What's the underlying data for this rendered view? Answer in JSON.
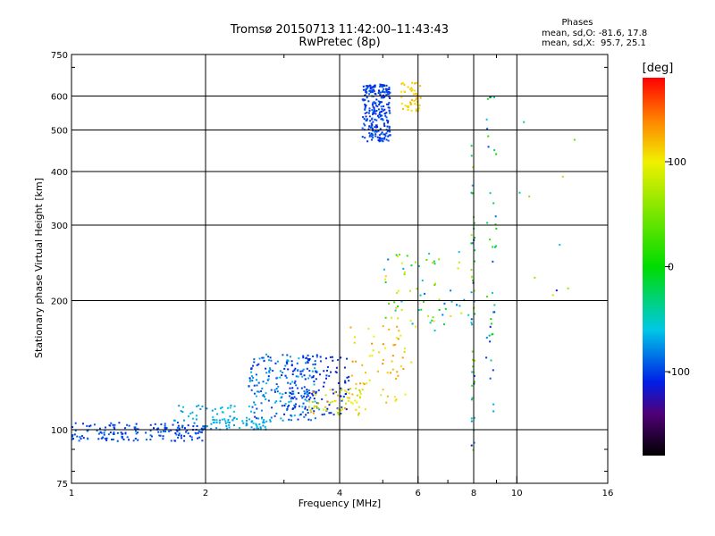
{
  "header": {
    "title_line1": "Tromsø 20150713 11:42:00–11:43:43",
    "title_line2": "RwPretec (8p)",
    "stats_title": "Phases",
    "stats_line1": "mean, sd,O: -81.6, 17.8",
    "stats_line2": "mean, sd,X:  95.7, 25.1"
  },
  "colorbar": {
    "label": "[deg]",
    "ticks": [
      100,
      0,
      -100
    ],
    "tick_labels": [
      "100",
      "0",
      "-100"
    ],
    "range": [
      -180,
      180
    ]
  },
  "chart_data": {
    "type": "scatter",
    "title": "Tromsø 20150713 11:42:00–11:43:43",
    "subtitle": "RwPretec (8p)",
    "xlabel": "Frequency [MHz]",
    "ylabel": "Stationary phase Virtual Height [km]",
    "xscale": "log",
    "yscale": "log",
    "xlim": [
      1,
      16
    ],
    "ylim": [
      75,
      750
    ],
    "x_ticks": [
      1,
      2,
      4,
      6,
      8,
      10,
      16
    ],
    "x_tick_labels": [
      "1",
      "2",
      "4",
      "6",
      "8",
      "10",
      "16"
    ],
    "y_ticks": [
      75,
      100,
      200,
      300,
      400,
      500,
      600,
      750
    ],
    "y_tick_labels": [
      "75",
      "100",
      "200",
      "300",
      "400",
      "500",
      "600",
      "750"
    ],
    "grid": true,
    "color_variable": "phase [deg]",
    "clusters": [
      {
        "x_range": [
          1.0,
          2.0
        ],
        "height_range": [
          94,
          104
        ],
        "phase_range": [
          -110,
          -85
        ],
        "count": 170
      },
      {
        "x_range": [
          2.0,
          2.8
        ],
        "height_range": [
          100,
          106
        ],
        "phase_range": [
          -80,
          -60
        ],
        "count": 60
      },
      {
        "x_range": [
          1.7,
          2.6
        ],
        "height_range": [
          105,
          115
        ],
        "phase_range": [
          -75,
          -55
        ],
        "count": 40
      },
      {
        "x_range": [
          2.5,
          3.6
        ],
        "height_range": [
          105,
          150
        ],
        "phase_range": [
          -110,
          -60
        ],
        "count": 200
      },
      {
        "x_range": [
          3.0,
          4.2
        ],
        "height_range": [
          108,
          150
        ],
        "phase_range": [
          -115,
          -95
        ],
        "count": 120
      },
      {
        "x_range": [
          3.4,
          4.6
        ],
        "height_range": [
          108,
          125
        ],
        "phase_range": [
          60,
          140
        ],
        "count": 60
      },
      {
        "x_range": [
          4.2,
          5.8
        ],
        "height_range": [
          115,
          175
        ],
        "phase_range": [
          90,
          140
        ],
        "count": 60
      },
      {
        "x_range": [
          4.5,
          5.2
        ],
        "height_range": [
          470,
          640
        ],
        "phase_range": [
          -110,
          -90
        ],
        "count": 260
      },
      {
        "x_range": [
          5.5,
          6.1
        ],
        "height_range": [
          550,
          650
        ],
        "phase_range": [
          100,
          125
        ],
        "count": 50
      },
      {
        "x_range": [
          5.0,
          7.8
        ],
        "height_range": [
          170,
          260
        ],
        "phase_range": [
          -100,
          120
        ],
        "count": 70
      },
      {
        "x_range": [
          7.9,
          8.05
        ],
        "height_range": [
          85,
          480
        ],
        "phase_range": [
          -140,
          80
        ],
        "count": 50
      },
      {
        "x_range": [
          8.5,
          9.0
        ],
        "height_range": [
          110,
          600
        ],
        "phase_range": [
          -110,
          30
        ],
        "count": 40
      },
      {
        "x_range": [
          10.0,
          13.5
        ],
        "height_range": [
          200,
          580
        ],
        "phase_range": [
          -130,
          100
        ],
        "count": 10
      }
    ]
  }
}
